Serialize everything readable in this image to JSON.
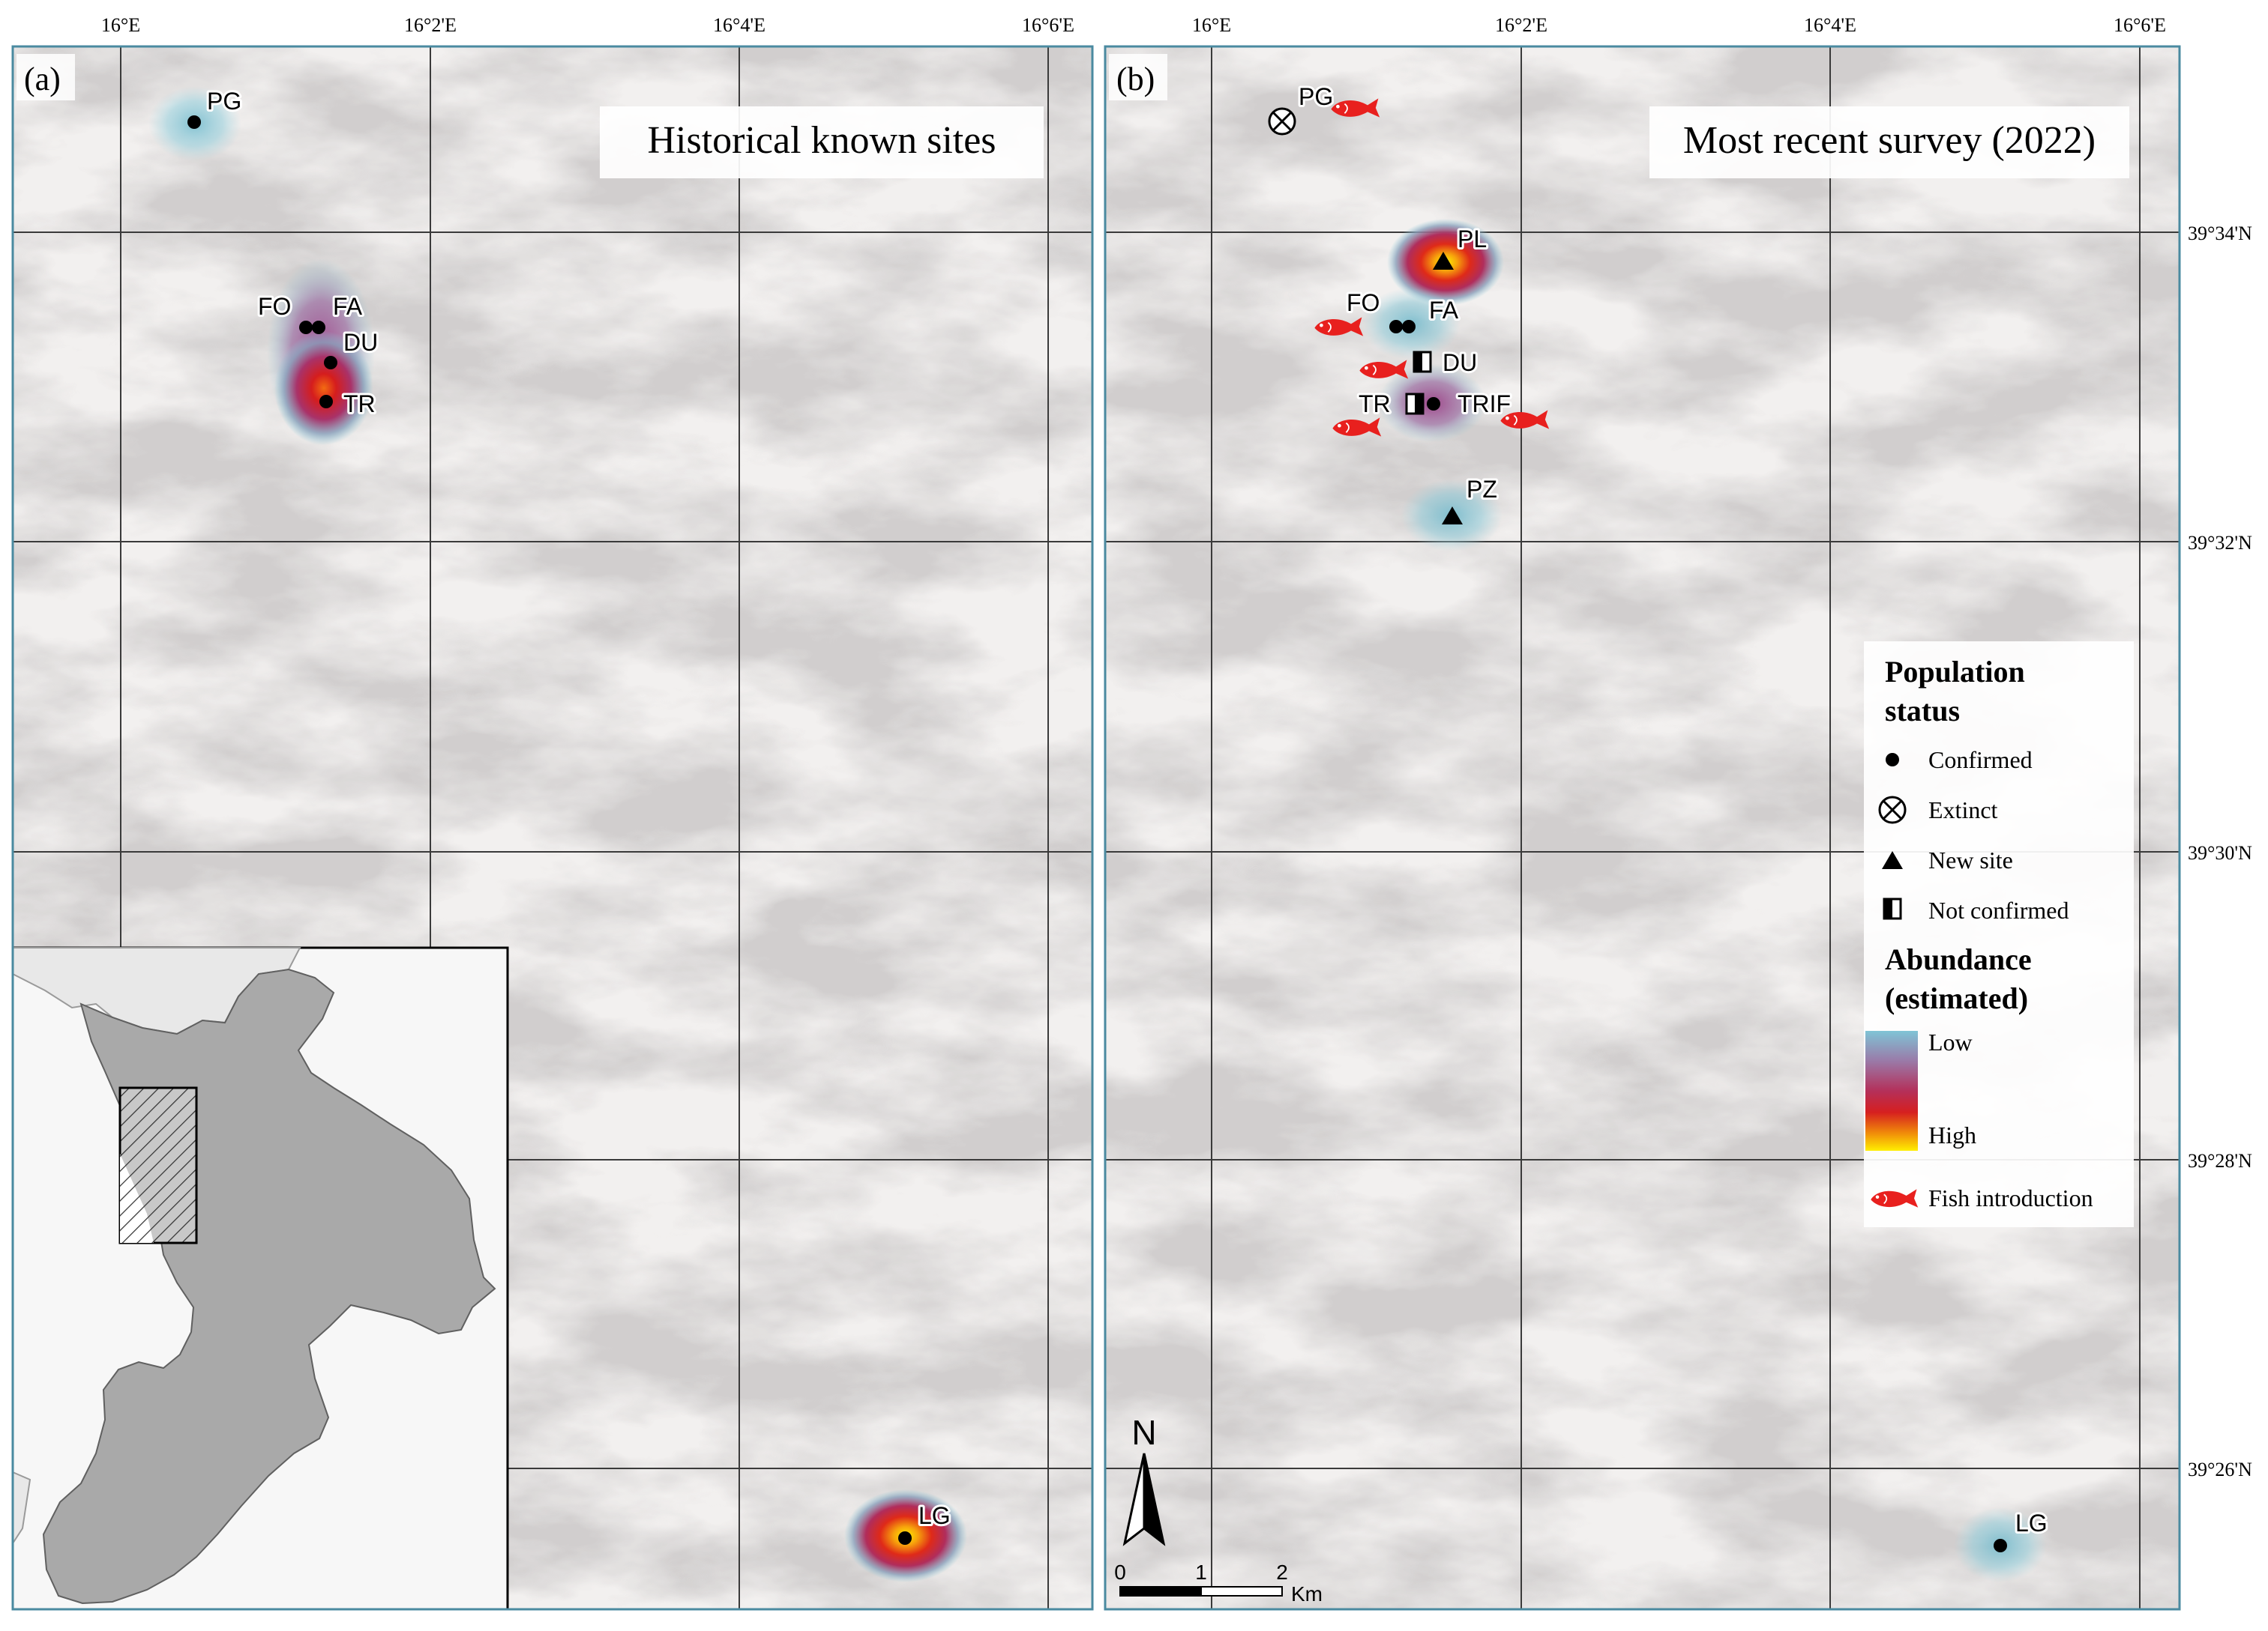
{
  "figure": {
    "panels": [
      {
        "letter": "(a)",
        "title": "Historical known sites",
        "top_axis_labels": [
          "16°E",
          "16°2'E",
          "16°4'E",
          "16°6'E"
        ],
        "sites": [
          {
            "code": "PG",
            "status": "confirmed",
            "abundance": "low"
          },
          {
            "code": "FO",
            "status": "confirmed",
            "abundance": "medium"
          },
          {
            "code": "FA",
            "status": "confirmed",
            "abundance": "medium"
          },
          {
            "code": "DU",
            "status": "confirmed",
            "abundance": "high"
          },
          {
            "code": "TR",
            "status": "confirmed",
            "abundance": "high"
          },
          {
            "code": "LG",
            "status": "confirmed",
            "abundance": "very-high"
          }
        ]
      },
      {
        "letter": "(b)",
        "title": "Most recent survey (2022)",
        "top_axis_labels": [
          "16°E",
          "16°2'E",
          "16°4'E",
          "16°6'E"
        ],
        "right_axis_labels": [
          "39°34'N",
          "39°32'N",
          "39°30'N",
          "39°28'N",
          "39°26'N"
        ],
        "sites": [
          {
            "code": "PG",
            "status": "extinct",
            "abundance": "none",
            "fish_introduction": true
          },
          {
            "code": "PL",
            "status": "new-site",
            "abundance": "very-high",
            "fish_introduction": false
          },
          {
            "code": "FO",
            "status": "confirmed",
            "abundance": "low-medium",
            "fish_introduction": true
          },
          {
            "code": "FA",
            "status": "confirmed",
            "abundance": "low-medium",
            "fish_introduction": false
          },
          {
            "code": "DU",
            "status": "not-confirmed",
            "abundance": "none",
            "fish_introduction": true
          },
          {
            "code": "TR",
            "status": "not-confirmed",
            "abundance": "none",
            "fish_introduction": true
          },
          {
            "code": "TRIF",
            "status": "confirmed",
            "abundance": "medium",
            "fish_introduction": true
          },
          {
            "code": "PZ",
            "status": "new-site",
            "abundance": "low",
            "fish_introduction": false
          },
          {
            "code": "LG",
            "status": "confirmed",
            "abundance": "low",
            "fish_introduction": false
          }
        ]
      }
    ],
    "legend": {
      "population_title_line1": "Population",
      "population_title_line2": "status",
      "items": [
        "Confirmed",
        "Extinct",
        "New site",
        "Not confirmed"
      ],
      "abundance_title_line1": "Abundance",
      "abundance_title_line2": "(estimated)",
      "low_label": "Low",
      "high_label": "High",
      "fish_label": "Fish introduction",
      "ramp_colors": [
        "#7fc4d6",
        "#9a7aa8",
        "#b4305a",
        "#d61f1f",
        "#f08a0a",
        "#ffee00"
      ]
    },
    "scale_bar": {
      "north": "N",
      "ticks": [
        "0",
        "1",
        "2"
      ],
      "unit": "Km"
    },
    "colors": {
      "fish": "#e8201e",
      "frame": "#4a8aa0",
      "hillshade_base": "#f1efee"
    }
  }
}
